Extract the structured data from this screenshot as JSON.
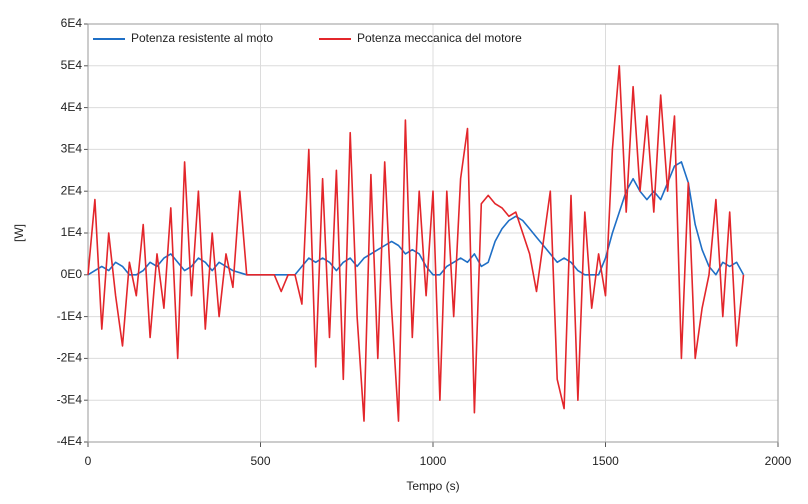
{
  "chart_data": {
    "type": "line",
    "xlabel": "Tempo (s)",
    "ylabel": "[W]",
    "x": [
      0,
      20,
      40,
      60,
      80,
      100,
      120,
      140,
      160,
      180,
      200,
      220,
      240,
      260,
      280,
      300,
      320,
      340,
      360,
      380,
      400,
      420,
      440,
      460,
      480,
      500,
      520,
      540,
      560,
      580,
      600,
      620,
      640,
      660,
      680,
      700,
      720,
      740,
      760,
      780,
      800,
      820,
      840,
      860,
      880,
      900,
      920,
      940,
      960,
      980,
      1000,
      1020,
      1040,
      1060,
      1080,
      1100,
      1120,
      1140,
      1160,
      1180,
      1200,
      1220,
      1240,
      1260,
      1280,
      1300,
      1320,
      1340,
      1360,
      1380,
      1400,
      1420,
      1440,
      1460,
      1480,
      1500,
      1520,
      1540,
      1560,
      1580,
      1600,
      1620,
      1640,
      1660,
      1680,
      1700,
      1720,
      1740,
      1760,
      1780,
      1800,
      1820,
      1840,
      1860,
      1880,
      1900
    ],
    "series": [
      {
        "name": "Potenza resistente al moto",
        "color": "#1f6fc6",
        "values": [
          0,
          1000,
          2000,
          1000,
          3000,
          2000,
          0,
          0,
          1000,
          3000,
          2000,
          4000,
          5000,
          3000,
          1000,
          2000,
          4000,
          3000,
          1000,
          3000,
          2000,
          1000,
          500,
          0,
          0,
          0,
          0,
          0,
          0,
          0,
          0,
          2000,
          4000,
          3000,
          4000,
          3000,
          1000,
          3000,
          4000,
          2000,
          4000,
          5000,
          6000,
          7000,
          8000,
          7000,
          5000,
          6000,
          5000,
          2000,
          0,
          0,
          2000,
          3000,
          4000,
          3000,
          5000,
          2000,
          3000,
          8000,
          11000,
          13000,
          14000,
          13000,
          11000,
          9000,
          7000,
          5000,
          3000,
          4000,
          3000,
          1000,
          0,
          0,
          0,
          4000,
          10000,
          15000,
          20000,
          23000,
          20000,
          18000,
          20000,
          18000,
          22000,
          26000,
          27000,
          22000,
          12000,
          6000,
          2000,
          0,
          3000,
          2000,
          3000,
          0
        ]
      },
      {
        "name": "Potenza meccanica del motore",
        "color": "#e3262b",
        "values": [
          0,
          18000,
          -13000,
          10000,
          -5000,
          -17000,
          3000,
          -5000,
          12000,
          -15000,
          5000,
          -8000,
          16000,
          -20000,
          27000,
          -5000,
          20000,
          -13000,
          10000,
          -10000,
          5000,
          -3000,
          20000,
          0,
          0,
          0,
          0,
          0,
          -4000,
          0,
          0,
          -7000,
          30000,
          -22000,
          23000,
          -15000,
          25000,
          -25000,
          34000,
          -10000,
          -35000,
          24000,
          -20000,
          27000,
          -8000,
          -35000,
          37000,
          -15000,
          20000,
          -5000,
          20000,
          -30000,
          20000,
          -10000,
          23000,
          35000,
          -33000,
          17000,
          19000,
          17000,
          16000,
          14000,
          15000,
          10000,
          5000,
          -4000,
          8000,
          20000,
          -25000,
          -32000,
          19000,
          -30000,
          15000,
          -8000,
          5000,
          -5000,
          30000,
          50000,
          15000,
          45000,
          20000,
          38000,
          15000,
          43000,
          20000,
          38000,
          -20000,
          22000,
          -20000,
          -8000,
          0,
          18000,
          -10000,
          15000,
          -17000,
          0
        ]
      }
    ],
    "xlim": [
      0,
      2000
    ],
    "xticks": [
      0,
      500,
      1000,
      1500,
      2000
    ],
    "ylim": [
      -40000,
      60000
    ],
    "yticks": [
      {
        "value": -40000,
        "label": "-4E4"
      },
      {
        "value": -30000,
        "label": "-3E4"
      },
      {
        "value": -20000,
        "label": "-2E4"
      },
      {
        "value": -10000,
        "label": "-1E4"
      },
      {
        "value": 0,
        "label": "0E0"
      },
      {
        "value": 10000,
        "label": "1E4"
      },
      {
        "value": 20000,
        "label": "2E4"
      },
      {
        "value": 30000,
        "label": "3E4"
      },
      {
        "value": 40000,
        "label": "4E4"
      },
      {
        "value": 50000,
        "label": "5E4"
      },
      {
        "value": 60000,
        "label": "6E4"
      }
    ],
    "grid": true,
    "legend": "top-left"
  }
}
